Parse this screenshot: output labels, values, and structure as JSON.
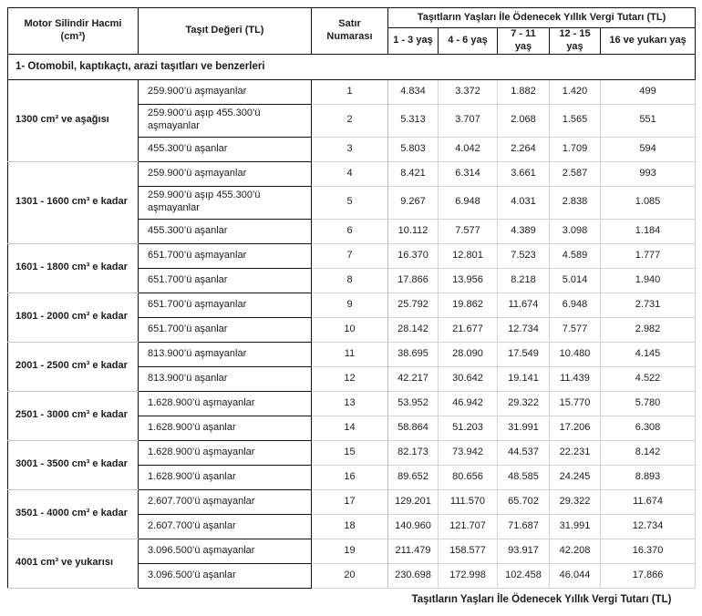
{
  "table": {
    "headers": {
      "motor": "Motor Silindir Hacmi (cm³)",
      "deger": "Taşıt Değeri (TL)",
      "satir": "Satır Numarası",
      "span": "Taşıtların Yaşları İle Ödenecek Yıllık Vergi Tutarı (TL)",
      "ages": [
        "1 - 3 yaş",
        "4 - 6 yaş",
        "7 - 11 yaş",
        "12 - 15 yaş",
        "16 ve yukarı yaş"
      ]
    },
    "section_title": "1- Otomobil, kaptıkaçtı, arazi taşıtları ve benzerleri",
    "groups": [
      {
        "label": "1300 cm³ ve aşağısı",
        "rows": [
          {
            "deger": "259.900’ü aşmayanlar",
            "no": "1",
            "values": [
              "4.834",
              "3.372",
              "1.882",
              "1.420",
              "499"
            ]
          },
          {
            "deger": "259.900’ü aşıp 455.300’ü aşmayanlar",
            "no": "2",
            "tall": true,
            "values": [
              "5.313",
              "3.707",
              "2.068",
              "1.565",
              "551"
            ]
          },
          {
            "deger": "455.300’ü aşanlar",
            "no": "3",
            "values": [
              "5.803",
              "4.042",
              "2.264",
              "1.709",
              "594"
            ]
          }
        ]
      },
      {
        "label": "1301 - 1600 cm³ e kadar",
        "rows": [
          {
            "deger": "259.900’ü aşmayanlar",
            "no": "4",
            "values": [
              "8.421",
              "6.314",
              "3.661",
              "2.587",
              "993"
            ]
          },
          {
            "deger": "259.900’ü aşıp 455.300’ü aşmayanlar",
            "no": "5",
            "tall": true,
            "values": [
              "9.267",
              "6.948",
              "4.031",
              "2.838",
              "1.085"
            ]
          },
          {
            "deger": "455.300’ü aşanlar",
            "no": "6",
            "values": [
              "10.112",
              "7.577",
              "4.389",
              "3.098",
              "1.184"
            ]
          }
        ]
      },
      {
        "label": "1601 - 1800 cm³ e kadar",
        "rows": [
          {
            "deger": "651.700’ü aşmayanlar",
            "no": "7",
            "values": [
              "16.370",
              "12.801",
              "7.523",
              "4.589",
              "1.777"
            ]
          },
          {
            "deger": "651.700’ü aşanlar",
            "no": "8",
            "values": [
              "17.866",
              "13.956",
              "8.218",
              "5.014",
              "1.940"
            ]
          }
        ]
      },
      {
        "label": "1801 - 2000 cm³ e kadar",
        "rows": [
          {
            "deger": "651.700’ü aşmayanlar",
            "no": "9",
            "values": [
              "25.792",
              "19.862",
              "11.674",
              "6.948",
              "2.731"
            ]
          },
          {
            "deger": "651.700’ü aşanlar",
            "no": "10",
            "values": [
              "28.142",
              "21.677",
              "12.734",
              "7.577",
              "2.982"
            ]
          }
        ]
      },
      {
        "label": "2001 - 2500 cm³ e kadar",
        "rows": [
          {
            "deger": "813.900’ü aşmayanlar",
            "no": "11",
            "values": [
              "38.695",
              "28.090",
              "17.549",
              "10.480",
              "4.145"
            ]
          },
          {
            "deger": "813.900’ü aşanlar",
            "no": "12",
            "values": [
              "42.217",
              "30.642",
              "19.141",
              "11.439",
              "4.522"
            ]
          }
        ]
      },
      {
        "label": "2501 - 3000 cm³ e kadar",
        "rows": [
          {
            "deger": "1.628.900’ü aşmayanlar",
            "no": "13",
            "values": [
              "53.952",
              "46.942",
              "29.322",
              "15.770",
              "5.780"
            ]
          },
          {
            "deger": "1.628.900’ü aşanlar",
            "no": "14",
            "values": [
              "58.864",
              "51.203",
              "31.991",
              "17.206",
              "6.308"
            ]
          }
        ]
      },
      {
        "label": "3001 - 3500 cm³ e kadar",
        "rows": [
          {
            "deger": "1.628.900’ü aşmayanlar",
            "no": "15",
            "values": [
              "82.173",
              "73.942",
              "44.537",
              "22.231",
              "8.142"
            ]
          },
          {
            "deger": "1.628.900’ü aşanlar",
            "no": "16",
            "values": [
              "89.652",
              "80.656",
              "48.585",
              "24.245",
              "8.893"
            ]
          }
        ]
      },
      {
        "label": "3501 - 4000 cm³ e kadar",
        "rows": [
          {
            "deger": "2.607.700’ü aşmayanlar",
            "no": "17",
            "values": [
              "129.201",
              "111.570",
              "65.702",
              "29.322",
              "11.674"
            ]
          },
          {
            "deger": "2.607.700’ü aşanlar",
            "no": "18",
            "values": [
              "140.960",
              "121.707",
              "71.687",
              "31.991",
              "12.734"
            ]
          }
        ]
      },
      {
        "label": "4001 cm³ ve yukarısı",
        "rows": [
          {
            "deger": "3.096.500’ü aşmayanlar",
            "no": "19",
            "values": [
              "211.479",
              "158.577",
              "93.917",
              "42.208",
              "16.370"
            ]
          },
          {
            "deger": "3.096.500’ü aşanlar",
            "no": "20",
            "values": [
              "230.698",
              "172.998",
              "102.458",
              "46.044",
              "17.866"
            ]
          }
        ]
      }
    ],
    "footer": "Taşıtların Yaşları İle Ödenecek Yıllık Vergi Tutarı (TL)"
  }
}
